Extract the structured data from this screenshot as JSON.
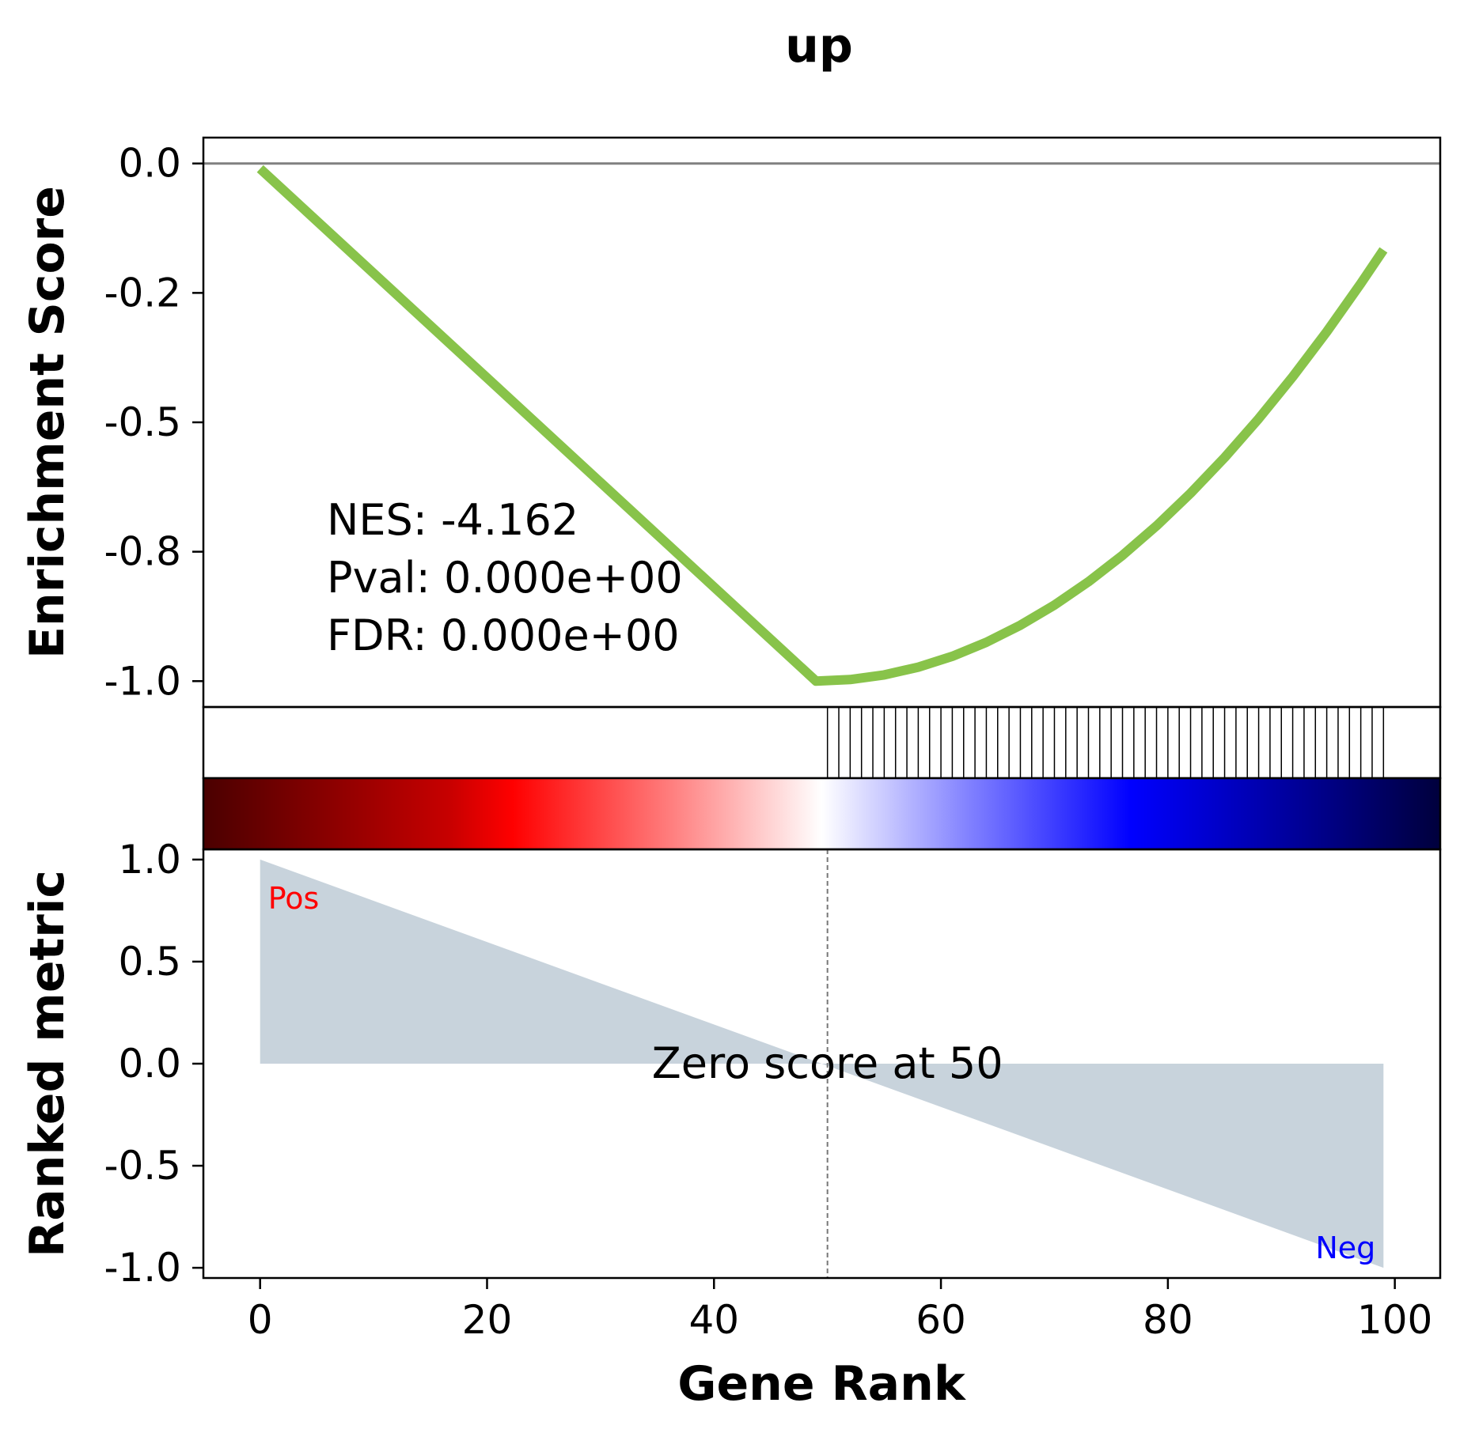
{
  "chart_data": {
    "title": "up",
    "type": "line",
    "xlabel": "Gene Rank",
    "xlim": [
      -5,
      104
    ],
    "xticks": [
      0,
      20,
      40,
      60,
      80,
      100
    ],
    "xtick_labels": [
      "0",
      "20",
      "40",
      "60",
      "80",
      "100"
    ],
    "panels": {
      "enrichment": {
        "ylabel": "Enrichment Score",
        "ylim": [
          -1.05,
          0.05
        ],
        "yticks": [
          0.0,
          -0.25,
          -0.5,
          -0.75,
          -1.0
        ],
        "ytick_labels": [
          "0.0",
          "-0.2",
          "-0.5",
          "-0.8",
          "-1.0"
        ],
        "color": "#88c34a",
        "baseline": 0.0,
        "curve_x": [
          0,
          49,
          52,
          55,
          58,
          61,
          64,
          67,
          70,
          73,
          76,
          79,
          82,
          85,
          88,
          91,
          94,
          97,
          99
        ],
        "curve_y": [
          -0.01,
          -1.0,
          -0.997,
          -0.988,
          -0.973,
          -0.952,
          -0.925,
          -0.892,
          -0.853,
          -0.808,
          -0.757,
          -0.7,
          -0.637,
          -0.568,
          -0.493,
          -0.412,
          -0.325,
          -0.232,
          -0.167
        ],
        "stats": [
          "NES: -4.162",
          "Pval: 0.000e+00",
          "FDR: 0.000e+00"
        ]
      },
      "hits": {
        "positions": [
          50,
          51,
          52,
          53,
          54,
          55,
          56,
          57,
          58,
          59,
          60,
          61,
          62,
          63,
          64,
          65,
          66,
          67,
          68,
          69,
          70,
          71,
          72,
          73,
          74,
          75,
          76,
          77,
          78,
          79,
          80,
          81,
          82,
          83,
          84,
          85,
          86,
          87,
          88,
          89,
          90,
          91,
          92,
          93,
          94,
          95,
          96,
          97,
          98,
          99
        ]
      },
      "colorbar": {
        "colormap": "seismic",
        "range": [
          -5,
          104
        ]
      },
      "ranked_metric": {
        "ylabel": "Ranked metric",
        "ylim": [
          -1.05,
          1.05
        ],
        "yticks": [
          1.0,
          0.5,
          0.0,
          -0.5,
          -1.0
        ],
        "ytick_labels": [
          "1.0",
          "0.5",
          "0.0",
          "-0.5",
          "-1.0"
        ],
        "x": [
          0,
          99
        ],
        "y": [
          1.0,
          -1.0
        ],
        "fill_color": "#c8d3dc",
        "zero_cross": 50,
        "zero_label": "Zero score at 50",
        "pos_label": "Pos",
        "pos_color": "#ff0000",
        "neg_label": "Neg",
        "neg_color": "#0000ff"
      }
    }
  }
}
